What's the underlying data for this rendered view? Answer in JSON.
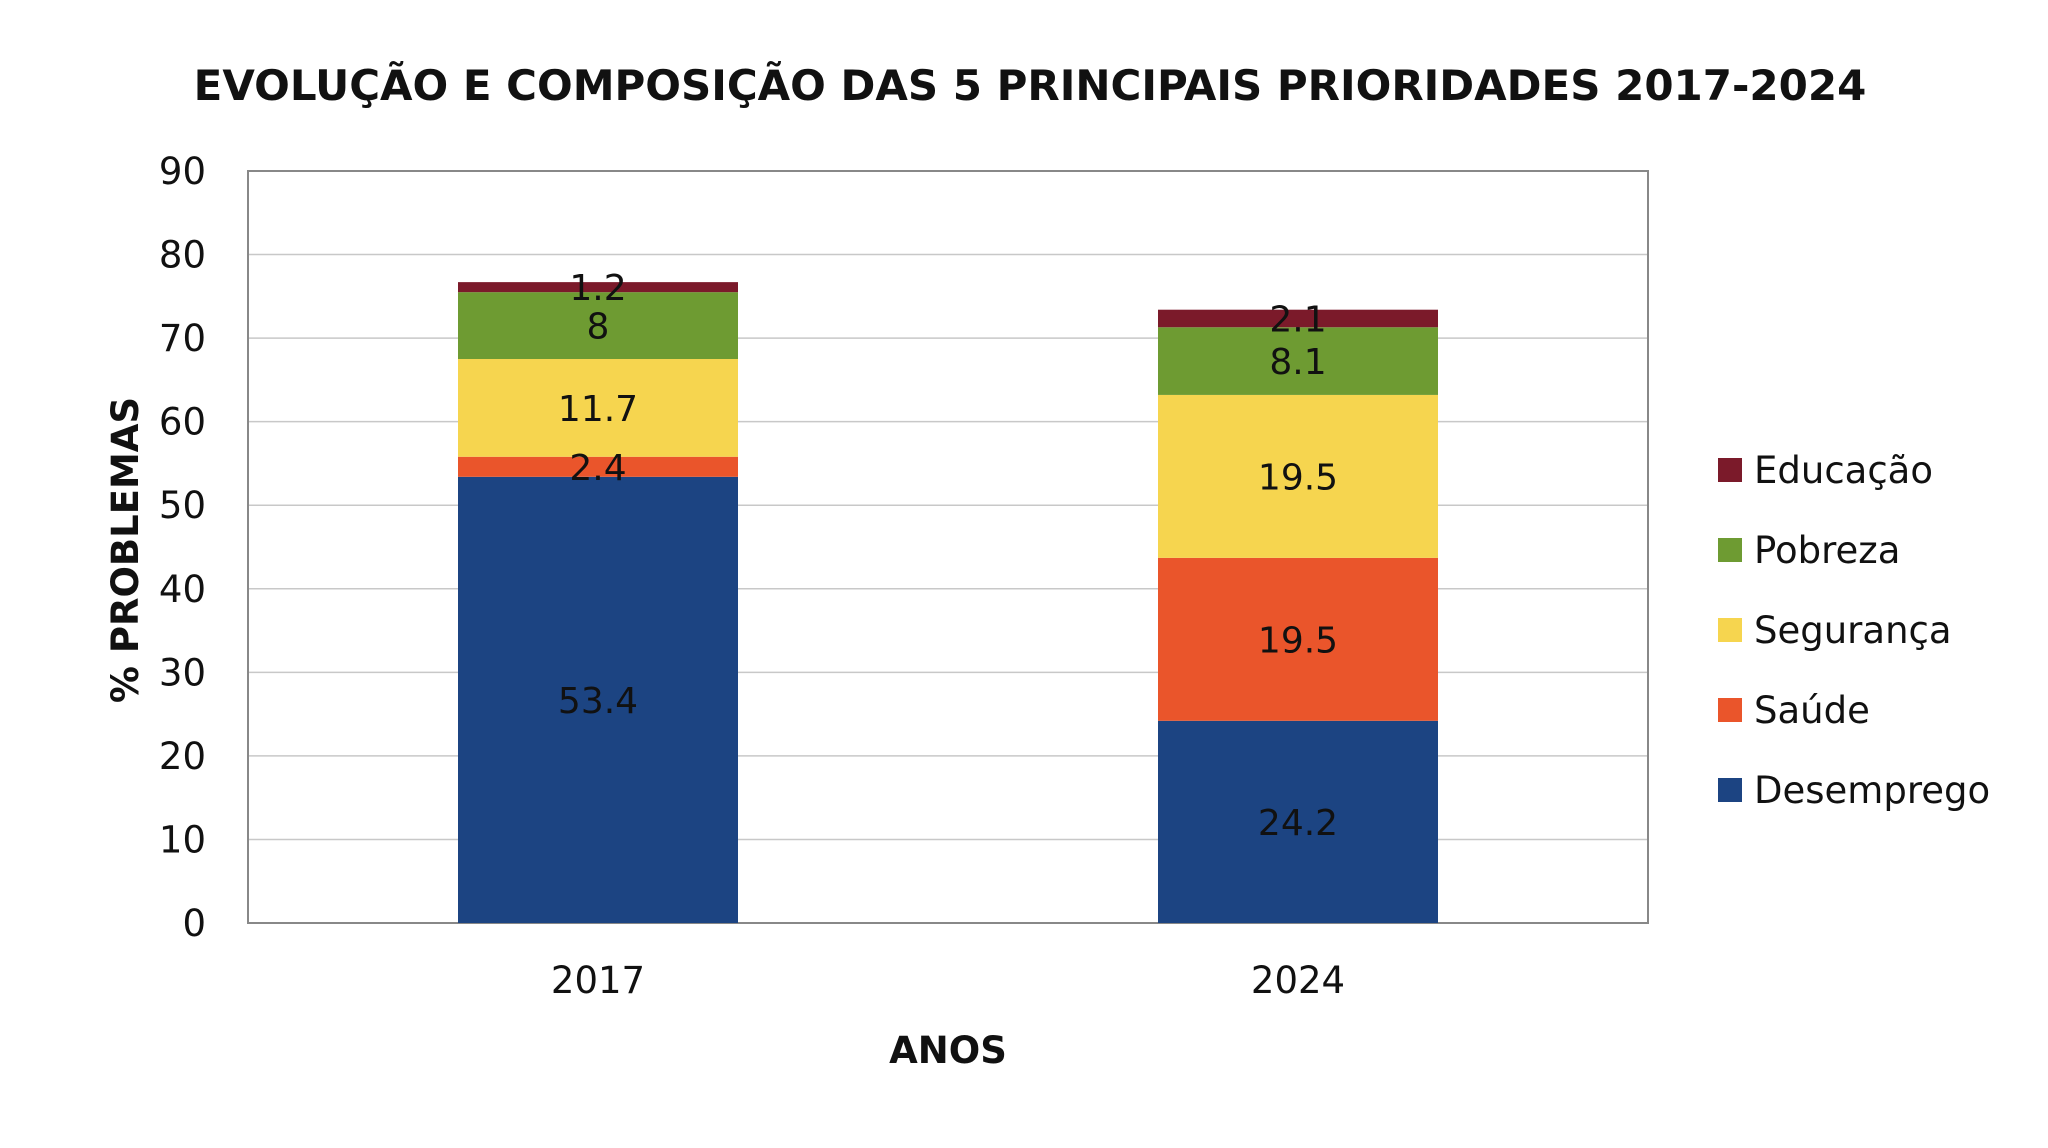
{
  "chart_data": {
    "type": "bar",
    "stacked": true,
    "title": "EVOLUÇÃO E COMPOSIÇÃO DAS 5 PRINCIPAIS PRIORIDADES 2017-2024",
    "xlabel": "ANOS",
    "ylabel": "% PROBLEMAS",
    "categories": [
      "2017",
      "2024"
    ],
    "ylim": [
      0,
      90
    ],
    "yticks": [
      0,
      10,
      20,
      30,
      40,
      50,
      60,
      70,
      80,
      90
    ],
    "grid": true,
    "legend_position": "right",
    "series": [
      {
        "name": "Desemprego",
        "color": "#1c4482",
        "values": [
          53.4,
          24.2
        ],
        "labels": [
          "53.4",
          "24.2"
        ]
      },
      {
        "name": "Saúde",
        "color": "#ea552b",
        "values": [
          2.4,
          19.5
        ],
        "labels": [
          "2.4",
          "19.5"
        ]
      },
      {
        "name": "Segurança",
        "color": "#f6d54f",
        "values": [
          11.7,
          19.5
        ],
        "labels": [
          "11.7",
          "19.5"
        ]
      },
      {
        "name": "Pobreza",
        "color": "#6e9b32",
        "values": [
          8,
          8.1
        ],
        "labels": [
          "8",
          "8.1"
        ]
      },
      {
        "name": "Educação",
        "color": "#7b1a2a",
        "values": [
          1.2,
          2.1
        ],
        "labels": [
          "1.2",
          "2.1"
        ]
      }
    ],
    "legend_order": [
      "Educação",
      "Pobreza",
      "Segurança",
      "Saúde",
      "Desemprego"
    ]
  }
}
